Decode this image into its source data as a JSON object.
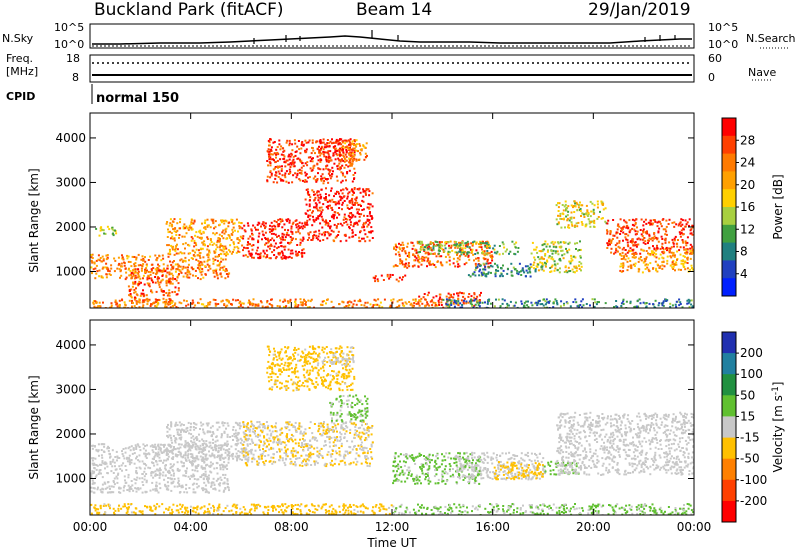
{
  "header": {
    "station": "Buckland Park (fitACF)",
    "beam": "Beam 14",
    "date": "29/Jan/2019"
  },
  "panels": {
    "nsky": {
      "label": "N.Sky",
      "ticks": [
        "10^5",
        "10^0"
      ]
    },
    "nsearch": {
      "label": "N.Search",
      "ticks": [
        "10^5",
        "10^0"
      ]
    },
    "freq": {
      "label_line1": "Freq.",
      "label_line2": "[MHz]",
      "ticks": [
        "18",
        "8"
      ]
    },
    "nave": {
      "label": "Nave",
      "ticks": [
        "60",
        "0"
      ]
    },
    "cpid": {
      "label": "CPID",
      "value": "normal 150"
    }
  },
  "power_colorbar": {
    "label": "Power [dB]",
    "ticks": [
      "28",
      "24",
      "20",
      "16",
      "12",
      "8",
      "4"
    ],
    "colors": [
      "#ff0000",
      "#ff4000",
      "#ff7a00",
      "#ffa000",
      "#ffd000",
      "#a8d040",
      "#40a040",
      "#208080",
      "#2040c0",
      "#0020ff"
    ]
  },
  "velocity_colorbar": {
    "label": "Velocity [m s",
    "label_sup": "-1",
    "label_end": "]",
    "ticks": [
      "200",
      "100",
      "50",
      "15",
      "-15",
      "-50",
      "-100",
      "-200"
    ],
    "colors": [
      "#2030b0",
      "#2080a0",
      "#209040",
      "#60c030",
      "#c8c8c8",
      "#ffc000",
      "#ff8000",
      "#ff4000",
      "#ff0000"
    ]
  },
  "chart_data": [
    {
      "type": "heatmap",
      "title": "Power",
      "xlabel": "Time UT",
      "ylabel": "Slant Range [km]",
      "xticks": [
        "00:00",
        "04:00",
        "08:00",
        "12:00",
        "16:00",
        "20:00",
        "00:00"
      ],
      "yticks": [
        "1000",
        "2000",
        "3000",
        "4000"
      ],
      "xlim_hours": [
        0,
        24
      ],
      "ylim_km": [
        180,
        4560
      ],
      "colorbar": "Power [dB]",
      "clim": [
        0,
        30
      ],
      "regions": [
        {
          "t0": 0.2,
          "t1": 1.0,
          "r0": 1800,
          "r1": 2050,
          "value": 14
        },
        {
          "t0": 0.0,
          "t1": 5.5,
          "r0": 850,
          "r1": 1400,
          "value": 22
        },
        {
          "t0": 1.5,
          "t1": 3.5,
          "r0": 300,
          "r1": 1100,
          "value": 24
        },
        {
          "t0": 3.0,
          "t1": 6.0,
          "r0": 1400,
          "r1": 2200,
          "value": 20
        },
        {
          "t0": 6.0,
          "t1": 8.5,
          "r0": 1300,
          "r1": 2200,
          "value": 28
        },
        {
          "t0": 8.5,
          "t1": 11.2,
          "r0": 1700,
          "r1": 2900,
          "value": 28
        },
        {
          "t0": 7.0,
          "t1": 10.5,
          "r0": 3000,
          "r1": 4000,
          "value": 26
        },
        {
          "t0": 9.0,
          "t1": 10.5,
          "r0": 3500,
          "r1": 4000,
          "value": 28
        },
        {
          "t0": 10.0,
          "t1": 11.0,
          "r0": 3500,
          "r1": 4000,
          "value": 20
        },
        {
          "t0": 11.2,
          "t1": 12.5,
          "r0": 800,
          "r1": 950,
          "value": 28
        },
        {
          "t0": 12.0,
          "t1": 16.0,
          "r0": 1100,
          "r1": 1700,
          "value": 24
        },
        {
          "t0": 13.0,
          "t1": 17.0,
          "r0": 1400,
          "r1": 1700,
          "value": 12
        },
        {
          "t0": 15.0,
          "t1": 18.0,
          "r0": 900,
          "r1": 1200,
          "value": 8
        },
        {
          "t0": 17.5,
          "t1": 19.5,
          "r0": 1000,
          "r1": 1700,
          "value": 14
        },
        {
          "t0": 13.0,
          "t1": 15.5,
          "r0": 250,
          "r1": 550,
          "value": 26
        },
        {
          "t0": 14.0,
          "t1": 24.0,
          "r0": 180,
          "r1": 400,
          "value": 8
        },
        {
          "t0": 0.0,
          "t1": 14.0,
          "r0": 180,
          "r1": 400,
          "value": 22
        },
        {
          "t0": 18.5,
          "t1": 20.5,
          "r0": 2000,
          "r1": 2600,
          "value": 16
        },
        {
          "t0": 20.5,
          "t1": 24.0,
          "r0": 1400,
          "r1": 2200,
          "value": 26
        },
        {
          "t0": 21.0,
          "t1": 24.0,
          "r0": 1000,
          "r1": 1500,
          "value": 20
        }
      ]
    },
    {
      "type": "heatmap",
      "title": "Velocity",
      "xlabel": "Time UT",
      "ylabel": "Slant Range [km]",
      "xticks": [
        "00:00",
        "04:00",
        "08:00",
        "12:00",
        "16:00",
        "20:00",
        "00:00"
      ],
      "yticks": [
        "1000",
        "2000",
        "3000",
        "4000"
      ],
      "xlim_hours": [
        0,
        24
      ],
      "ylim_km": [
        180,
        4560
      ],
      "colorbar": "Velocity [m s-1]",
      "clim": [
        -200,
        200
      ],
      "regions": [
        {
          "t0": 0.0,
          "t1": 5.5,
          "r0": 700,
          "r1": 1800,
          "value": 0
        },
        {
          "t0": 3.0,
          "t1": 6.5,
          "r0": 1400,
          "r1": 2300,
          "value": 0
        },
        {
          "t0": 6.0,
          "t1": 11.2,
          "r0": 1300,
          "r1": 2300,
          "value": -20
        },
        {
          "t0": 7.0,
          "t1": 10.5,
          "r0": 3000,
          "r1": 4000,
          "value": -40
        },
        {
          "t0": 9.0,
          "t1": 10.5,
          "r0": 3550,
          "r1": 3800,
          "value": 0
        },
        {
          "t0": 9.5,
          "t1": 11.0,
          "r0": 2300,
          "r1": 2900,
          "value": 30
        },
        {
          "t0": 12.0,
          "t1": 15.5,
          "r0": 900,
          "r1": 1600,
          "value": 30
        },
        {
          "t0": 14.5,
          "t1": 18.0,
          "r0": 1000,
          "r1": 1600,
          "value": 0
        },
        {
          "t0": 16.0,
          "t1": 18.0,
          "r0": 1000,
          "r1": 1400,
          "value": -40
        },
        {
          "t0": 18.0,
          "t1": 19.5,
          "r0": 1100,
          "r1": 1400,
          "value": 30
        },
        {
          "t0": 12.0,
          "t1": 24.0,
          "r0": 180,
          "r1": 450,
          "value": 30
        },
        {
          "t0": 0.0,
          "t1": 12.0,
          "r0": 180,
          "r1": 450,
          "value": -40
        },
        {
          "t0": 18.5,
          "t1": 24.0,
          "r0": 1100,
          "r1": 2500,
          "value": 0
        }
      ]
    }
  ]
}
